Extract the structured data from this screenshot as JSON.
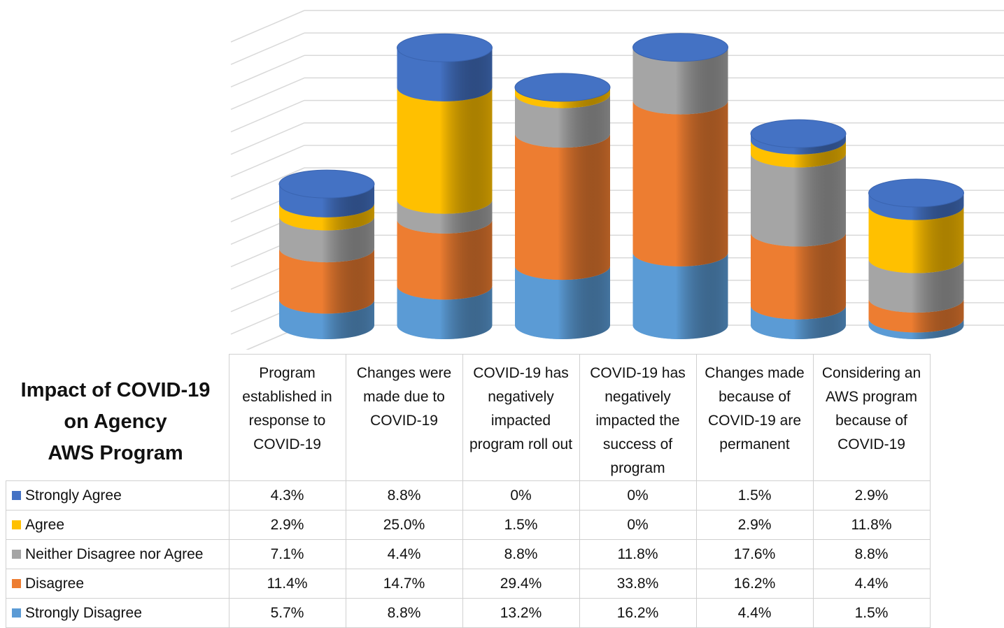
{
  "chart_data": {
    "type": "bar",
    "stacked": true,
    "title": "Impact of COVID-19\non Agency\nAWS Program",
    "categories": [
      "Program established in response to COVID-19",
      "Changes were made due to COVID-19",
      "COVID-19 has negatively impacted program roll out",
      "COVID-19 has negatively impacted the success of program",
      "Changes made because of COVID-19 are permanent",
      "Considering an AWS program because of COVID-19"
    ],
    "series": [
      {
        "name": "Strongly Agree",
        "color": "#4472c4",
        "values": [
          4.3,
          8.8,
          0,
          0,
          1.5,
          2.9
        ],
        "value_labels": [
          "4.3%",
          "8.8%",
          "0%",
          "0%",
          "1.5%",
          "2.9%"
        ]
      },
      {
        "name": "Agree",
        "color": "#ffc000",
        "values": [
          2.9,
          25.0,
          1.5,
          0,
          2.9,
          11.8
        ],
        "value_labels": [
          "2.9%",
          "25.0%",
          "1.5%",
          "0%",
          "2.9%",
          "11.8%"
        ]
      },
      {
        "name": "Neither Disagree nor Agree",
        "color": "#a5a5a5",
        "values": [
          7.1,
          4.4,
          8.8,
          11.8,
          17.6,
          8.8
        ],
        "value_labels": [
          "7.1%",
          "4.4%",
          "8.8%",
          "11.8%",
          "17.6%",
          "8.8%"
        ]
      },
      {
        "name": "Disagree",
        "color": "#ed7d31",
        "values": [
          11.4,
          14.7,
          29.4,
          33.8,
          16.2,
          4.4
        ],
        "value_labels": [
          "11.4%",
          "14.7%",
          "29.4%",
          "33.8%",
          "16.2%",
          "4.4%"
        ]
      },
      {
        "name": "Strongly Disagree",
        "color": "#5b9bd5",
        "values": [
          5.7,
          8.8,
          13.2,
          16.2,
          4.4,
          1.5
        ],
        "value_labels": [
          "5.7%",
          "8.8%",
          "13.2%",
          "16.2%",
          "4.4%",
          "1.5%"
        ]
      }
    ],
    "ylim": [
      0,
      70
    ],
    "yticks": [
      0,
      5,
      10,
      15,
      20,
      25,
      30,
      35,
      40,
      45,
      50,
      55,
      60,
      65,
      70
    ],
    "grid": true
  }
}
